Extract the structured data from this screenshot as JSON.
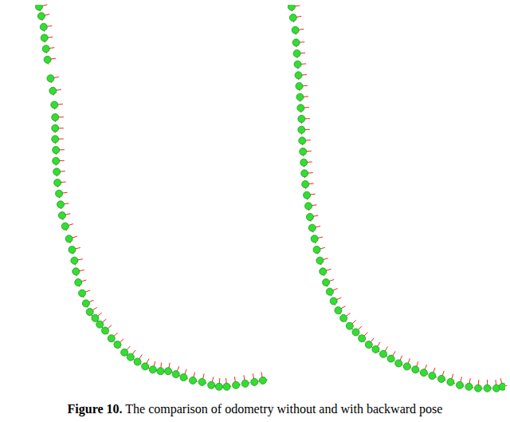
{
  "chart_data": [
    {
      "type": "scatter",
      "marker": "circle",
      "color": "#33dd33",
      "tick_labels": false,
      "xlim": [
        0,
        345
      ],
      "ylim": [
        0,
        500
      ],
      "x": [
        44,
        47,
        50,
        51,
        53,
        55,
        59,
        62,
        64,
        65,
        65,
        65,
        66,
        66,
        67,
        68,
        70,
        72,
        74,
        78,
        83,
        87,
        90,
        92,
        95,
        100,
        105,
        110,
        117,
        123,
        130,
        138,
        146,
        155,
        163,
        172,
        182,
        192,
        202,
        212,
        222,
        232,
        244,
        256,
        268,
        278,
        288,
        300,
        312,
        324,
        335
      ],
      "y": [
        498,
        486,
        472,
        458,
        444,
        430,
        406,
        390,
        372,
        356,
        342,
        328,
        314,
        300,
        286,
        272,
        258,
        244,
        230,
        216,
        200,
        186,
        172,
        158,
        144,
        130,
        117,
        106,
        98,
        90,
        82,
        72,
        64,
        54,
        48,
        42,
        36,
        32,
        30,
        30,
        26,
        22,
        18,
        16,
        12,
        10,
        10,
        12,
        14,
        16,
        18
      ]
    },
    {
      "type": "scatter",
      "marker": "circle",
      "color": "#33dd33",
      "tick_labels": false,
      "xlim": [
        345,
        640
      ],
      "ylim": [
        0,
        500
      ],
      "x": [
        360,
        362,
        365,
        366,
        367,
        368,
        369,
        370,
        371,
        372,
        373,
        373,
        374,
        375,
        376,
        377,
        378,
        380,
        382,
        384,
        387,
        390,
        393,
        397,
        401,
        405,
        410,
        415,
        421,
        428,
        436,
        444,
        452,
        461,
        470,
        480,
        490,
        500,
        511,
        522,
        533,
        544,
        556,
        568,
        580,
        592,
        604,
        616,
        628,
        636
      ],
      "y": [
        498,
        484,
        468,
        452,
        438,
        424,
        410,
        396,
        382,
        368,
        354,
        340,
        326,
        312,
        298,
        284,
        270,
        256,
        242,
        228,
        214,
        200,
        186,
        172,
        158,
        144,
        132,
        120,
        108,
        98,
        88,
        80,
        72,
        64,
        58,
        52,
        46,
        40,
        36,
        32,
        28,
        24,
        20,
        16,
        12,
        10,
        8,
        8,
        8,
        10
      ]
    }
  ],
  "caption": {
    "label": "Figure 10.",
    "text": "The comparison of odometry without and with backward pose"
  }
}
